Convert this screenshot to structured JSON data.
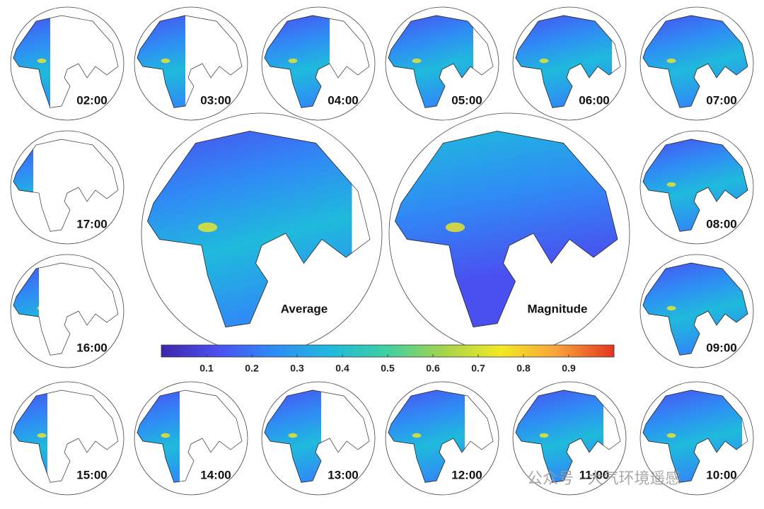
{
  "panels": [
    {
      "label": "02:00"
    },
    {
      "label": "03:00"
    },
    {
      "label": "04:00"
    },
    {
      "label": "05:00"
    },
    {
      "label": "06:00"
    },
    {
      "label": "07:00"
    },
    {
      "label": "17:00"
    },
    {
      "label": "08:00"
    },
    {
      "label": "16:00"
    },
    {
      "label": "09:00"
    },
    {
      "label": "15:00"
    },
    {
      "label": "14:00"
    },
    {
      "label": "13:00"
    },
    {
      "label": "12:00"
    },
    {
      "label": "11:00"
    },
    {
      "label": "10:00"
    }
  ],
  "average": {
    "label": "Average"
  },
  "magnitude": {
    "label": "Magnitude"
  },
  "colorbar": {
    "lim": [
      0,
      1
    ],
    "ticks": [
      0.1,
      0.2,
      0.3,
      0.4,
      0.5,
      0.6,
      0.7,
      0.8,
      0.9
    ],
    "colors": [
      "#3e26a8",
      "#4a50f0",
      "#2f8cf5",
      "#1fbadc",
      "#3fd0a0",
      "#a6d44a",
      "#f3e923",
      "#f9a13a",
      "#e2361e"
    ]
  },
  "watermark": "公众号 · 大气环境遥感"
}
